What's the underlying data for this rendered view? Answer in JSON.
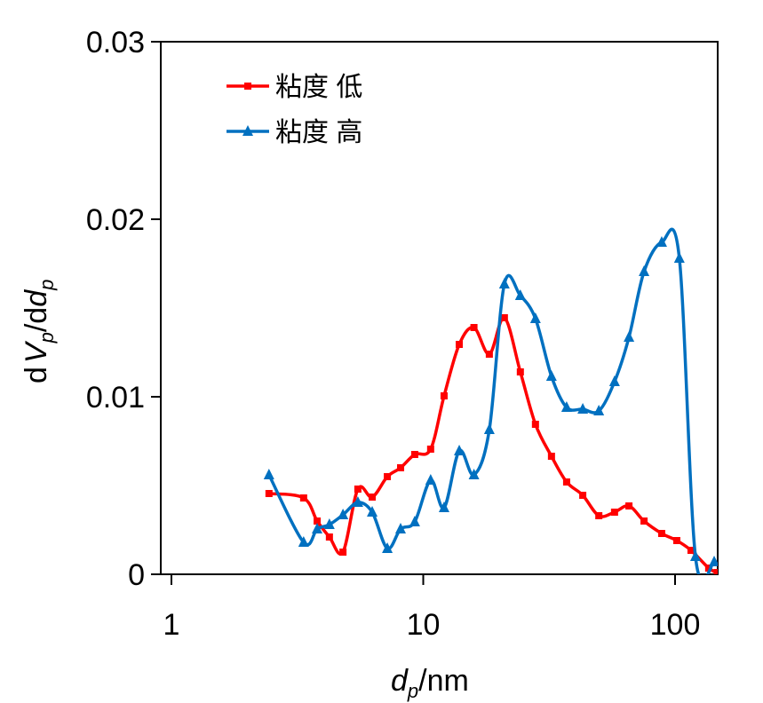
{
  "chart_data": {
    "type": "line",
    "title": "",
    "xlabel": {
      "main": "d",
      "sub": "p",
      "unit": "/nm"
    },
    "ylabel": {
      "d1": "d",
      "v": "V",
      "vsub": "p",
      "slash": "/d",
      "d2": "d",
      "dsub": "p"
    },
    "xscale": "log",
    "xlim": [
      0.91,
      147
    ],
    "ylim": [
      0,
      0.03
    ],
    "xticks": [
      {
        "v": 1,
        "label": "1"
      },
      {
        "v": 10,
        "label": "10"
      },
      {
        "v": 100,
        "label": "100"
      }
    ],
    "yticks": [
      {
        "v": 0,
        "label": "0"
      },
      {
        "v": 0.01,
        "label": "0.01"
      },
      {
        "v": 0.02,
        "label": "0.02"
      },
      {
        "v": 0.03,
        "label": "0.03"
      }
    ],
    "grid": false,
    "legend_position": "top-left",
    "series": [
      {
        "name": "粘度 低",
        "color": "#ff0000",
        "marker": "square",
        "x": [
          2.44,
          3.35,
          3.79,
          4.24,
          4.8,
          5.5,
          6.27,
          7.2,
          8.13,
          9.25,
          10.7,
          12.1,
          13.9,
          15.9,
          18.3,
          21.0,
          24.3,
          27.9,
          32.3,
          37.1,
          43.0,
          49.8,
          57.5,
          65.6,
          75.3,
          88.5,
          101.6,
          115.7,
          136,
          147
        ],
        "y": [
          0.00455,
          0.0043,
          0.003,
          0.0021,
          0.00125,
          0.0048,
          0.00435,
          0.0055,
          0.006,
          0.00675,
          0.00705,
          0.01005,
          0.01295,
          0.0139,
          0.0124,
          0.01445,
          0.0114,
          0.00845,
          0.00665,
          0.0052,
          0.00445,
          0.0033,
          0.0035,
          0.00385,
          0.003,
          0.0023,
          0.0019,
          0.00135,
          0.00035,
          0.0001
        ]
      },
      {
        "name": "粘度 高",
        "color": "#0070c0",
        "marker": "triangle",
        "x": [
          2.44,
          3.35,
          3.79,
          4.24,
          4.8,
          5.5,
          6.27,
          7.2,
          8.13,
          9.25,
          10.7,
          12.1,
          13.9,
          15.9,
          18.3,
          21.0,
          24.3,
          27.9,
          32.3,
          37.1,
          43.0,
          49.8,
          57.5,
          65.6,
          75.3,
          88.5,
          104,
          120.5,
          143
        ],
        "y": [
          0.0056,
          0.0018,
          0.00255,
          0.0028,
          0.00335,
          0.00405,
          0.0035,
          0.00145,
          0.00255,
          0.00295,
          0.0053,
          0.00375,
          0.00695,
          0.0056,
          0.00815,
          0.01635,
          0.0157,
          0.0144,
          0.01115,
          0.0094,
          0.0093,
          0.0092,
          0.01085,
          0.01335,
          0.01705,
          0.0187,
          0.0178,
          0.001,
          0.0007
        ]
      }
    ]
  }
}
